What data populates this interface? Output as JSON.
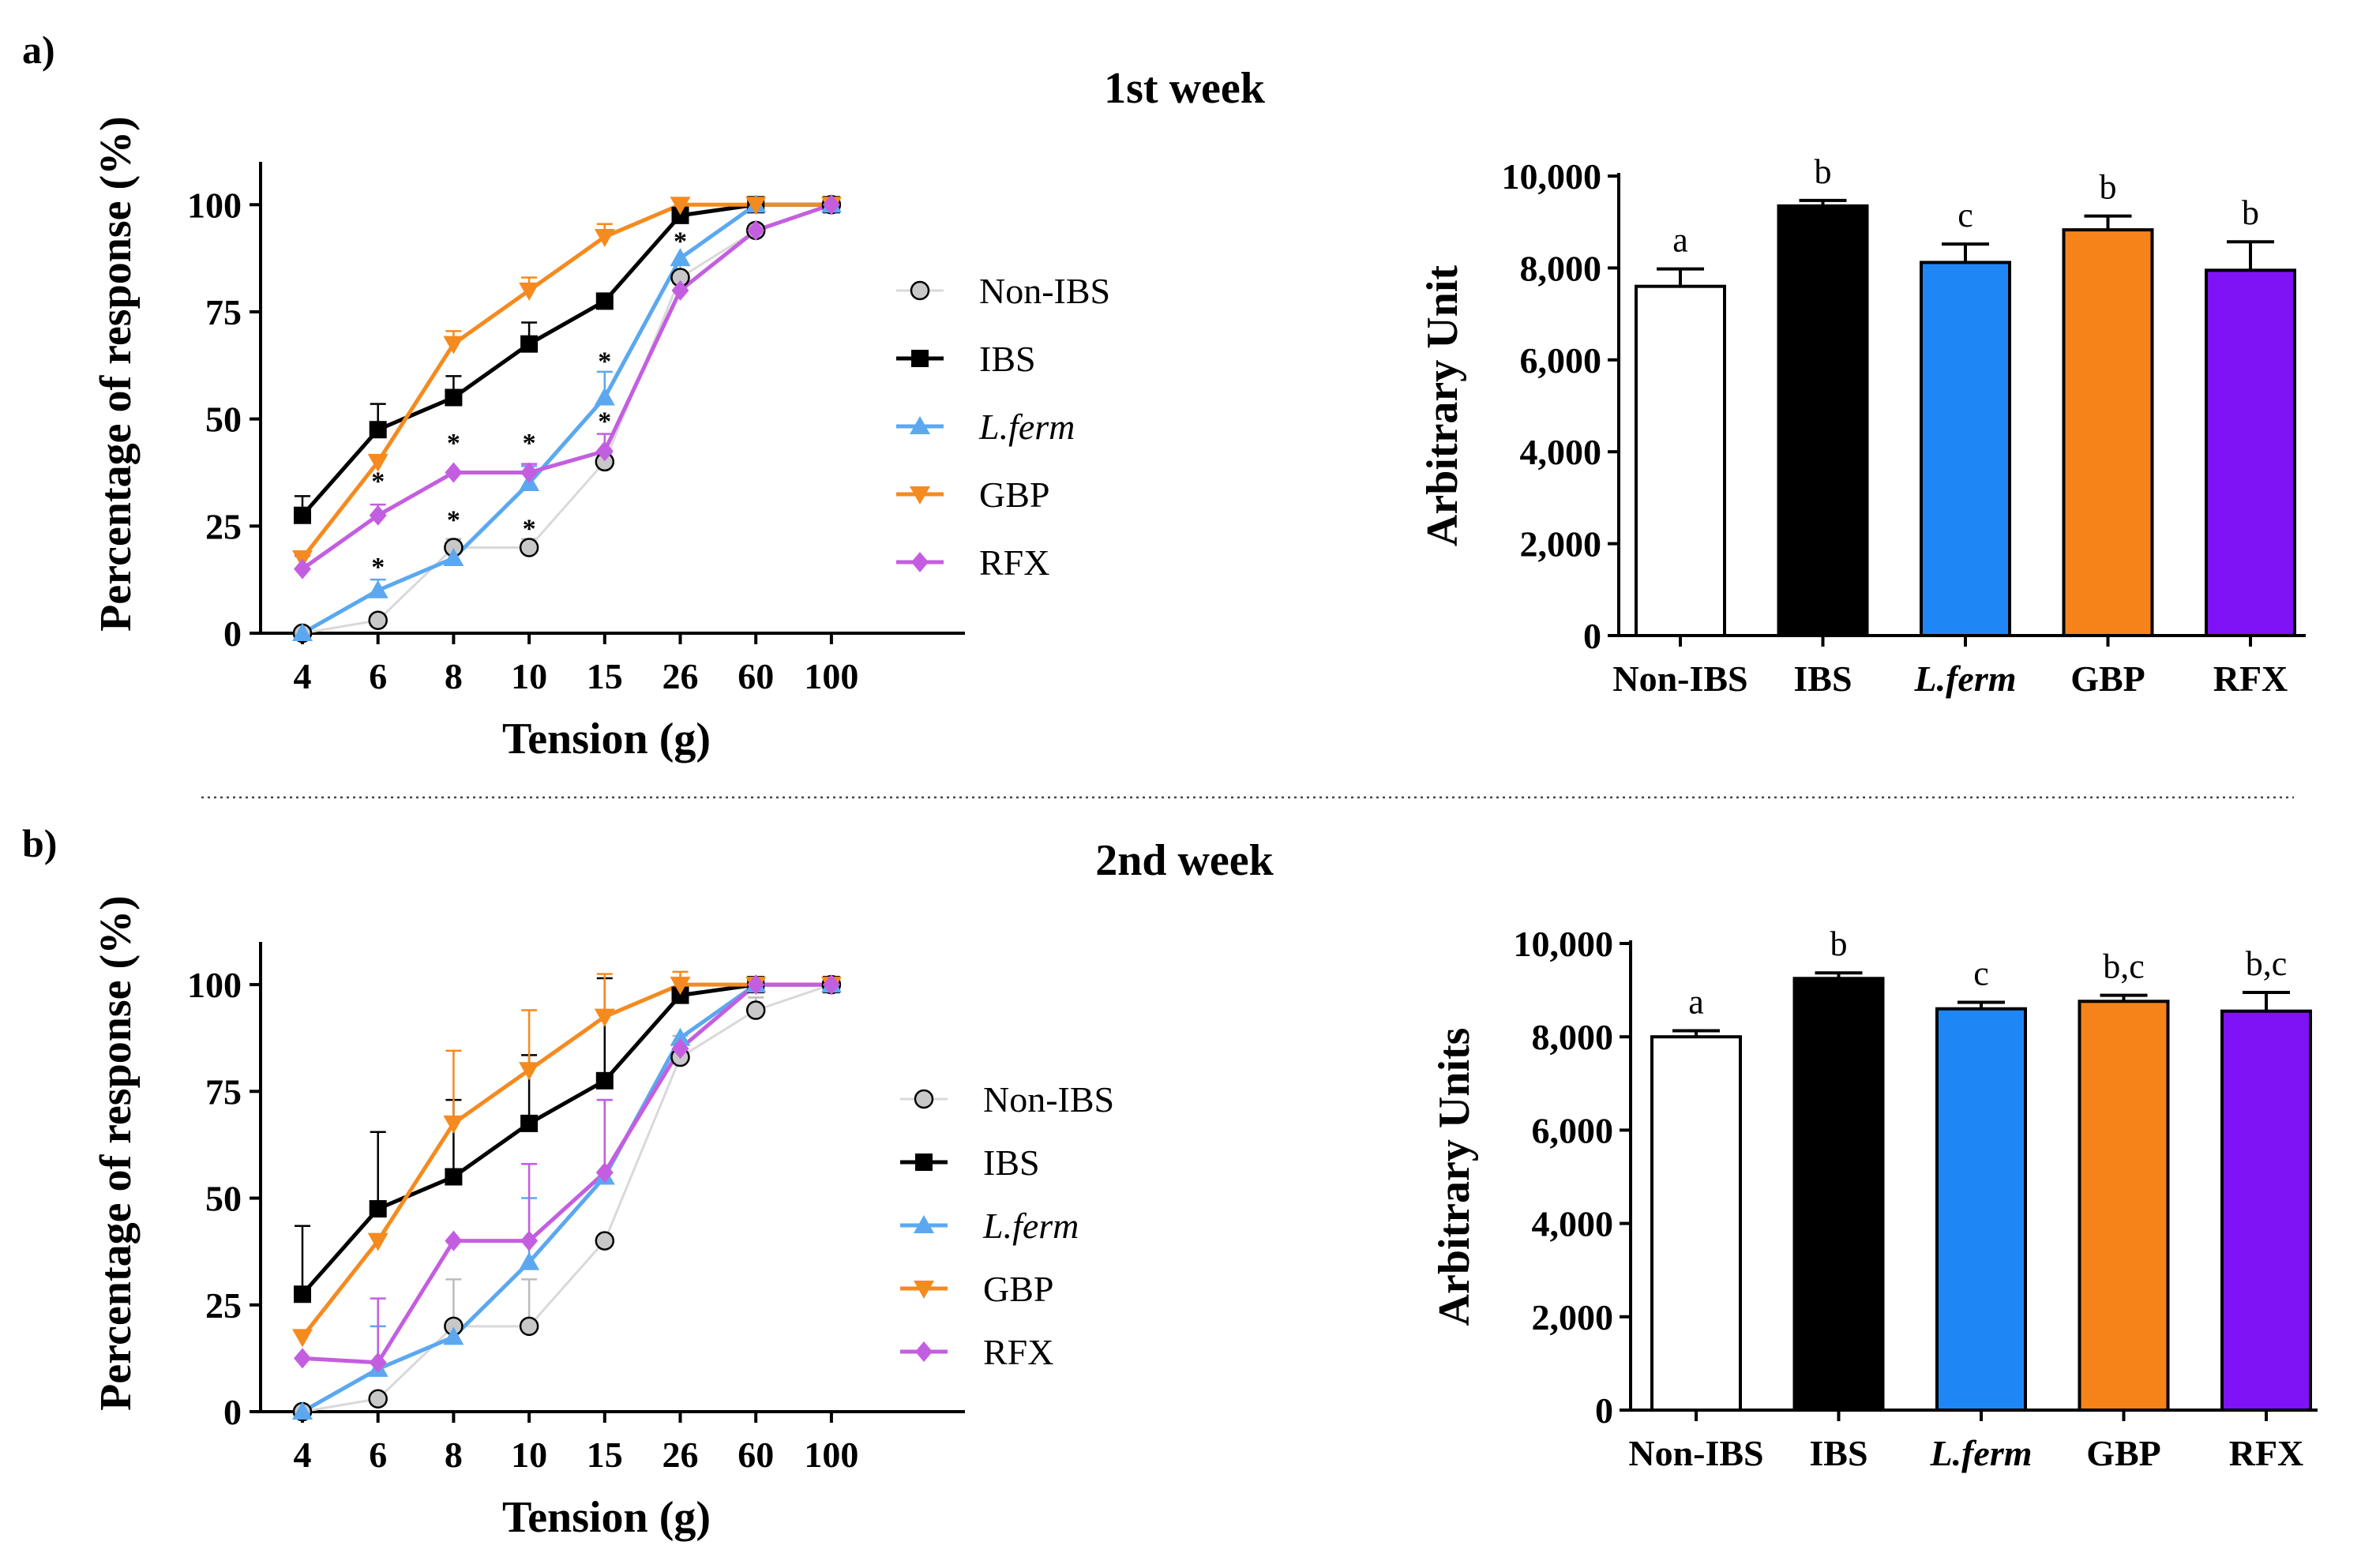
{
  "panels": [
    {
      "label": "a)",
      "title": "1st week",
      "line_chart": {
        "type": "line",
        "xlabel": "Tension (g)",
        "ylabel": "Percentage of response (%)",
        "categories": [
          "4",
          "6",
          "8",
          "10",
          "15",
          "26",
          "60",
          "100"
        ],
        "ylim": [
          0,
          110
        ],
        "yticks": [
          "0",
          "25",
          "50",
          "75",
          "100"
        ],
        "series": [
          {
            "name": "Non-IBS",
            "italic": false,
            "color": "#c8c8c8",
            "line": "#d9d9d9",
            "marker": "circle",
            "values": [
              0,
              3,
              20,
              20,
              40,
              83,
              94,
              100
            ],
            "errors": [
              0,
              0,
              2,
              2,
              2,
              3,
              0,
              0
            ]
          },
          {
            "name": "IBS",
            "italic": false,
            "color": "#000000",
            "line": "#000000",
            "marker": "square",
            "values": [
              27.5,
              47.5,
              55,
              67.5,
              77.5,
              97.5,
              100,
              100
            ],
            "errors": [
              4.5,
              6,
              5,
              5,
              0,
              2,
              0,
              0
            ]
          },
          {
            "name": "L.ferm",
            "italic": true,
            "color": "#5ba8f0",
            "line": "#5ba8f0",
            "marker": "triangle-up",
            "values": [
              0,
              10,
              17.5,
              35,
              55,
              87.5,
              100,
              100
            ],
            "errors": [
              0,
              2.5,
              0,
              4,
              6,
              0,
              0,
              0
            ]
          },
          {
            "name": "GBP",
            "italic": false,
            "color": "#f58a1f",
            "line": "#f58a1f",
            "marker": "triangle-down",
            "values": [
              17.5,
              40,
              67.5,
              80,
              92.5,
              100,
              100,
              100
            ],
            "errors": [
              0,
              0,
              3,
              3,
              3,
              0,
              0,
              0
            ]
          },
          {
            "name": "RFX",
            "italic": false,
            "color": "#c45ee0",
            "line": "#c45ee0",
            "marker": "diamond",
            "values": [
              15,
              27.5,
              37.5,
              37.5,
              42.5,
              80,
              94,
              100
            ],
            "errors": [
              3,
              2.5,
              0,
              2,
              4,
              0,
              0,
              0
            ]
          }
        ],
        "annotations": [
          {
            "text": "*",
            "category": "6",
            "value": 36
          },
          {
            "text": "*",
            "category": "6",
            "value": 16
          },
          {
            "text": "*",
            "category": "8",
            "value": 45
          },
          {
            "text": "*",
            "category": "8",
            "value": 27
          },
          {
            "text": "*",
            "category": "10",
            "value": 45
          },
          {
            "text": "*",
            "category": "10",
            "value": 25
          },
          {
            "text": "*",
            "category": "15",
            "value": 64
          },
          {
            "text": "*",
            "category": "15",
            "value": 50
          },
          {
            "text": "*",
            "category": "26",
            "value": 92
          }
        ]
      },
      "bar_chart": {
        "type": "bar",
        "ylabel": "Arbitrary Unit",
        "ylim": [
          0,
          10000
        ],
        "yticks": [
          "0",
          "2,000",
          "4,000",
          "6,000",
          "8,000",
          "10,000"
        ],
        "categories": [
          {
            "label": "Non-IBS",
            "italic": false
          },
          {
            "label": "IBS",
            "italic": false
          },
          {
            "label": "L.ferm",
            "italic": true
          },
          {
            "label": "GBP",
            "italic": false
          },
          {
            "label": "RFX",
            "italic": false
          }
        ],
        "values": [
          7600,
          9350,
          8120,
          8830,
          7950
        ],
        "errors": [
          380,
          120,
          400,
          300,
          620
        ],
        "letters": [
          "a",
          "b",
          "c",
          "b",
          "b"
        ],
        "colors": [
          "#ffffff",
          "#000000",
          "#1f87f5",
          "#f6831a",
          "#7f13f5"
        ]
      }
    },
    {
      "label": "b)",
      "title": "2nd week",
      "line_chart": {
        "type": "line",
        "xlabel": "Tension (g)",
        "ylabel": "Percentage of response (%)",
        "categories": [
          "4",
          "6",
          "8",
          "10",
          "15",
          "26",
          "60",
          "100"
        ],
        "ylim": [
          0,
          110
        ],
        "yticks": [
          "0",
          "25",
          "50",
          "75",
          "100"
        ],
        "series": [
          {
            "name": "Non-IBS",
            "italic": false,
            "color": "#c8c8c8",
            "line": "#d9d9d9",
            "marker": "circle",
            "values": [
              0,
              3,
              20,
              20,
              40,
              83,
              94,
              100
            ],
            "errors": [
              0,
              0,
              11,
              11,
              0,
              5,
              3,
              0
            ]
          },
          {
            "name": "IBS",
            "italic": false,
            "color": "#000000",
            "line": "#000000",
            "marker": "square",
            "values": [
              27.5,
              47.5,
              55,
              67.5,
              77.5,
              97.5,
              100,
              100
            ],
            "errors": [
              16,
              18,
              18,
              16,
              24,
              4,
              0,
              0
            ]
          },
          {
            "name": "L.ferm",
            "italic": true,
            "color": "#5ba8f0",
            "line": "#5ba8f0",
            "marker": "triangle-up",
            "values": [
              0,
              10,
              17.5,
              35,
              55,
              87.5,
              100,
              100
            ],
            "errors": [
              0,
              10,
              0,
              15,
              18,
              0,
              0,
              0
            ]
          },
          {
            "name": "GBP",
            "italic": false,
            "color": "#f58a1f",
            "line": "#f58a1f",
            "marker": "triangle-down",
            "values": [
              17.5,
              40,
              67.5,
              80,
              92.5,
              100,
              100,
              100
            ],
            "errors": [
              0,
              0,
              17,
              14,
              10,
              3,
              0,
              0
            ]
          },
          {
            "name": "RFX",
            "italic": false,
            "color": "#c45ee0",
            "line": "#c45ee0",
            "marker": "diamond",
            "values": [
              12.5,
              11.5,
              40,
              40,
              56,
              85,
              100,
              100
            ],
            "errors": [
              0,
              15,
              0,
              18,
              17,
              0,
              0,
              0
            ]
          }
        ],
        "annotations": []
      },
      "bar_chart": {
        "type": "bar",
        "ylabel": "Arbitrary Units",
        "ylim": [
          0,
          10000
        ],
        "yticks": [
          "0",
          "2,000",
          "4,000",
          "6,000",
          "8,000",
          "10,000"
        ],
        "categories": [
          {
            "label": "Non-IBS",
            "italic": false
          },
          {
            "label": "IBS",
            "italic": false
          },
          {
            "label": "L.ferm",
            "italic": true
          },
          {
            "label": "GBP",
            "italic": false
          },
          {
            "label": "RFX",
            "italic": false
          }
        ],
        "values": [
          8000,
          9250,
          8600,
          8760,
          8550
        ],
        "errors": [
          130,
          120,
          140,
          130,
          400
        ],
        "letters": [
          "a",
          "b",
          "c",
          "b,c",
          "b,c"
        ],
        "colors": [
          "#ffffff",
          "#000000",
          "#1f87f5",
          "#f6831a",
          "#7f13f5"
        ]
      }
    }
  ]
}
